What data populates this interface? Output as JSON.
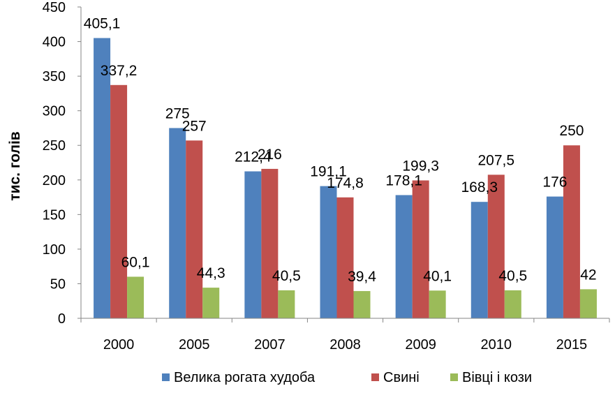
{
  "chart_data": {
    "type": "bar",
    "title": "",
    "xlabel": "",
    "ylabel": "тис. голів",
    "categories": [
      "2000",
      "2005",
      "2007",
      "2008",
      "2009",
      "2010",
      "2015"
    ],
    "series": [
      {
        "name": "Велика рогата худоба",
        "color": "#4F81BD",
        "values": [
          405.1,
          275,
          212.4,
          191.1,
          178.1,
          168.3,
          176
        ],
        "labels": [
          "405,1",
          "275",
          "212,4",
          "191,1",
          "178,1",
          "168,3",
          "176"
        ]
      },
      {
        "name": "Свині",
        "color": "#C0504D",
        "values": [
          337.2,
          257,
          216,
          174.8,
          199.3,
          207.5,
          250
        ],
        "labels": [
          "337,2",
          "257",
          "216",
          "174,8",
          "199,3",
          "207,5",
          "250"
        ]
      },
      {
        "name": "Вівці і кози",
        "color": "#9BBB59",
        "values": [
          60.1,
          44.3,
          40.5,
          39.4,
          40.1,
          40.5,
          42
        ],
        "labels": [
          "60,1",
          "44,3",
          "40,5",
          "39,4",
          "40,1",
          "40,5",
          "42"
        ]
      }
    ],
    "ylim": [
      0,
      450
    ],
    "yticks": [
      0,
      50,
      100,
      150,
      200,
      250,
      300,
      350,
      400,
      450
    ],
    "grid": false,
    "legend": "bottom"
  }
}
